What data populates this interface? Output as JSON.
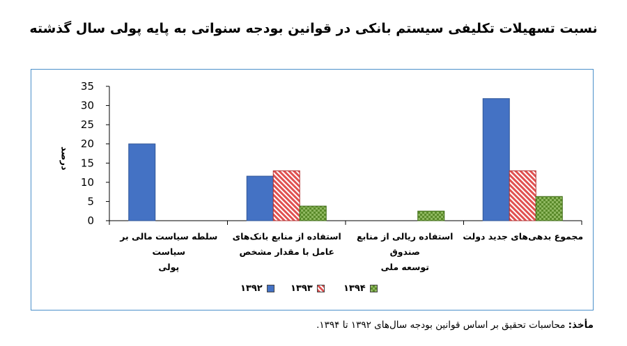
{
  "title": "نسبت تسهیلات تکلیفی سیستم بانکی در قوانین بودجه سنواتی به پایه پولی سال گذشته",
  "source": {
    "label": "مأخذ:",
    "text": " محاسبات تحقیق بر اساس قوانین بودجه سال‌های ۱۳۹۲ تا ۱۳۹۴."
  },
  "colors": {
    "s1392": "#4472c4",
    "s1393": "#e05050",
    "s1394": "#5a8a2a",
    "frame": "#4a8fc9"
  },
  "chart_data": {
    "type": "bar",
    "ylabel": "درصد",
    "ylim": [
      0,
      35
    ],
    "yticks": [
      0,
      5,
      10,
      15,
      20,
      25,
      30,
      35
    ],
    "grid": false,
    "legend_position": "bottom",
    "categories": [
      "مجموع بدهی‌های جدید دولت",
      "استفاده ریالی از منابع صندوق توسعه ملی",
      "استفاده از منابع بانک‌های عامل با مقدار مشخص",
      "سلطه سیاست مالی بر سیاست پولی"
    ],
    "category_lines": [
      [
        "مجموع بدهی‌های جدید دولت"
      ],
      [
        "استفاده ریالی از منابع صندوق",
        "توسعه ملی"
      ],
      [
        "استفاده از منابع بانک‌های",
        "عامل با مقدار مشخص"
      ],
      [
        "سلطه سیاست مالی بر سیاست",
        "پولی"
      ]
    ],
    "series": [
      {
        "name": "۱۳۹۲",
        "values": [
          31.8,
          null,
          11.6,
          20.0
        ]
      },
      {
        "name": "۱۳۹۳",
        "values": [
          13.0,
          null,
          13.0,
          null
        ]
      },
      {
        "name": "۱۳۹۴",
        "values": [
          6.3,
          2.5,
          3.8,
          null
        ]
      }
    ]
  }
}
